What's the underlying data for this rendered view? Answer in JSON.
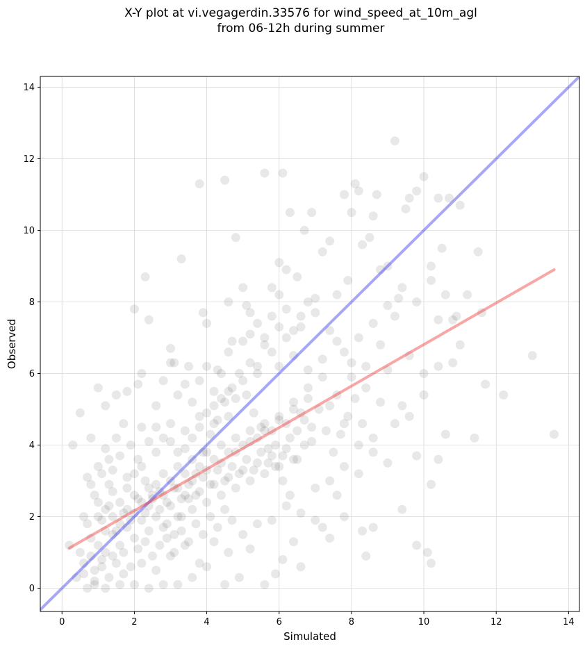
{
  "chart_data": {
    "type": "scatter",
    "title": "X-Y plot at vi.vegagerdin.33576 for wind_speed_at_10m_agl",
    "subtitle": "from 06-12h during summer",
    "xlabel": "Simulated",
    "ylabel": "Observed",
    "xlim": [
      -0.6,
      14.3
    ],
    "ylim": [
      -0.65,
      14.3
    ],
    "xticks": [
      "0",
      "2",
      "4",
      "6",
      "8",
      "10",
      "12",
      "14"
    ],
    "yticks": [
      "0",
      "2",
      "4",
      "6",
      "8",
      "10",
      "12",
      "14"
    ],
    "grid": true,
    "point_color": "#404040",
    "point_opacity": 0.12,
    "points": [
      [
        0.2,
        1.2
      ],
      [
        0.3,
        4.0
      ],
      [
        0.5,
        4.9
      ],
      [
        0.6,
        0.7
      ],
      [
        0.4,
        0.3
      ],
      [
        0.7,
        3.1
      ],
      [
        0.8,
        4.2
      ],
      [
        0.9,
        0.1
      ],
      [
        1.0,
        5.6
      ],
      [
        1.2,
        5.1
      ],
      [
        1.3,
        2.9
      ],
      [
        1.5,
        5.4
      ],
      [
        1.8,
        5.5
      ],
      [
        2.0,
        7.8
      ],
      [
        2.1,
        5.7
      ],
      [
        2.2,
        6.0
      ],
      [
        2.3,
        8.7
      ],
      [
        2.4,
        7.5
      ],
      [
        2.6,
        5.1
      ],
      [
        2.8,
        5.8
      ],
      [
        3.0,
        6.7
      ],
      [
        3.1,
        6.3
      ],
      [
        3.3,
        9.2
      ],
      [
        3.5,
        6.2
      ],
      [
        3.8,
        11.3
      ],
      [
        3.9,
        7.7
      ],
      [
        4.0,
        7.4
      ],
      [
        4.3,
        6.1
      ],
      [
        4.5,
        11.4
      ],
      [
        4.6,
        8.0
      ],
      [
        4.7,
        6.9
      ],
      [
        4.8,
        9.8
      ],
      [
        5.0,
        8.4
      ],
      [
        5.1,
        7.9
      ],
      [
        5.2,
        7.7
      ],
      [
        5.4,
        6.0
      ],
      [
        5.6,
        11.6
      ],
      [
        5.8,
        8.4
      ],
      [
        6.0,
        8.2
      ],
      [
        6.0,
        9.1
      ],
      [
        6.1,
        11.6
      ],
      [
        6.2,
        8.9
      ],
      [
        6.3,
        10.5
      ],
      [
        6.5,
        8.7
      ],
      [
        6.7,
        10.0
      ],
      [
        6.9,
        10.5
      ],
      [
        7.0,
        8.1
      ],
      [
        7.2,
        9.4
      ],
      [
        7.4,
        9.7
      ],
      [
        7.6,
        8.2
      ],
      [
        7.8,
        11.0
      ],
      [
        7.9,
        8.6
      ],
      [
        8.0,
        10.5
      ],
      [
        8.1,
        11.3
      ],
      [
        8.2,
        11.1
      ],
      [
        8.3,
        9.6
      ],
      [
        8.5,
        9.8
      ],
      [
        8.6,
        10.4
      ],
      [
        8.7,
        11.0
      ],
      [
        8.8,
        8.9
      ],
      [
        9.0,
        9.0
      ],
      [
        9.2,
        12.5
      ],
      [
        9.3,
        8.1
      ],
      [
        9.5,
        10.6
      ],
      [
        9.6,
        10.9
      ],
      [
        9.8,
        11.1
      ],
      [
        10.0,
        11.5
      ],
      [
        10.2,
        9.0
      ],
      [
        10.4,
        10.9
      ],
      [
        10.5,
        9.5
      ],
      [
        10.7,
        10.9
      ],
      [
        10.9,
        7.6
      ],
      [
        11.0,
        10.7
      ],
      [
        11.2,
        8.2
      ],
      [
        11.5,
        9.4
      ],
      [
        11.6,
        7.7
      ],
      [
        11.7,
        5.7
      ],
      [
        12.2,
        5.4
      ],
      [
        13.0,
        6.5
      ],
      [
        13.6,
        4.3
      ],
      [
        11.4,
        4.2
      ],
      [
        10.6,
        4.3
      ],
      [
        10.4,
        3.6
      ],
      [
        10.2,
        2.9
      ],
      [
        9.8,
        1.2
      ],
      [
        10.1,
        1.0
      ],
      [
        10.2,
        0.7
      ],
      [
        9.4,
        2.2
      ],
      [
        8.6,
        1.7
      ],
      [
        8.4,
        0.9
      ],
      [
        8.3,
        1.6
      ],
      [
        7.8,
        2.0
      ],
      [
        7.6,
        2.6
      ],
      [
        7.4,
        1.4
      ],
      [
        7.2,
        1.7
      ],
      [
        7.0,
        1.9
      ],
      [
        6.6,
        0.6
      ],
      [
        6.4,
        1.3
      ],
      [
        6.1,
        0.8
      ],
      [
        5.9,
        0.4
      ],
      [
        5.6,
        0.1
      ],
      [
        5.2,
        1.1
      ],
      [
        4.9,
        0.3
      ],
      [
        4.5,
        0.1
      ],
      [
        4.0,
        0.6
      ],
      [
        3.6,
        0.3
      ],
      [
        3.2,
        0.1
      ],
      [
        2.8,
        0.1
      ],
      [
        2.4,
        0.0
      ],
      [
        2.0,
        0.1
      ],
      [
        1.6,
        0.1
      ],
      [
        1.2,
        0.0
      ],
      [
        0.9,
        0.2
      ],
      [
        0.7,
        0.0
      ],
      [
        1.1,
        0.6
      ],
      [
        1.4,
        0.9
      ],
      [
        1.7,
        0.4
      ],
      [
        2.2,
        0.7
      ],
      [
        2.6,
        0.5
      ],
      [
        3.0,
        0.9
      ],
      [
        3.4,
        1.2
      ],
      [
        3.8,
        0.7
      ],
      [
        4.2,
        1.3
      ],
      [
        4.6,
        1.0
      ],
      [
        5.0,
        1.5
      ],
      [
        5.4,
        1.8
      ],
      [
        5.8,
        1.9
      ],
      [
        6.2,
        2.3
      ],
      [
        6.6,
        2.1
      ],
      [
        7.0,
        2.8
      ],
      [
        7.4,
        3.0
      ],
      [
        7.8,
        3.4
      ],
      [
        8.2,
        3.2
      ],
      [
        8.6,
        3.8
      ],
      [
        9.0,
        3.5
      ],
      [
        9.4,
        5.1
      ],
      [
        9.8,
        3.7
      ],
      [
        10.0,
        6.0
      ],
      [
        10.4,
        7.5
      ],
      [
        10.8,
        6.3
      ],
      [
        9.6,
        6.5
      ],
      [
        9.2,
        7.6
      ],
      [
        8.8,
        6.8
      ],
      [
        8.4,
        6.2
      ],
      [
        8.0,
        5.9
      ],
      [
        7.6,
        5.4
      ],
      [
        7.2,
        5.9
      ],
      [
        6.8,
        5.6
      ],
      [
        6.4,
        5.0
      ],
      [
        6.0,
        4.7
      ],
      [
        5.6,
        4.4
      ],
      [
        5.2,
        4.1
      ],
      [
        4.8,
        3.8
      ],
      [
        4.4,
        3.5
      ],
      [
        4.0,
        3.3
      ],
      [
        3.6,
        3.0
      ],
      [
        3.2,
        2.8
      ],
      [
        2.8,
        2.6
      ],
      [
        2.4,
        2.3
      ],
      [
        2.0,
        2.1
      ],
      [
        1.6,
        1.8
      ],
      [
        1.2,
        1.6
      ],
      [
        0.8,
        1.4
      ],
      [
        0.6,
        2.0
      ],
      [
        1.0,
        2.4
      ],
      [
        1.4,
        2.7
      ],
      [
        1.8,
        3.1
      ],
      [
        2.2,
        3.4
      ],
      [
        2.6,
        3.8
      ],
      [
        3.0,
        4.1
      ],
      [
        3.4,
        4.4
      ],
      [
        3.8,
        4.8
      ],
      [
        4.2,
        5.1
      ],
      [
        4.6,
        5.5
      ],
      [
        5.0,
        5.8
      ],
      [
        5.4,
        6.2
      ],
      [
        5.8,
        6.6
      ],
      [
        6.2,
        7.0
      ],
      [
        6.6,
        7.3
      ],
      [
        7.0,
        7.7
      ],
      [
        7.4,
        7.2
      ],
      [
        7.8,
        6.6
      ],
      [
        8.2,
        7.0
      ],
      [
        8.6,
        7.4
      ],
      [
        9.0,
        7.9
      ],
      [
        9.4,
        8.4
      ],
      [
        9.8,
        8.0
      ],
      [
        10.2,
        8.6
      ],
      [
        10.6,
        8.2
      ],
      [
        11.0,
        6.8
      ],
      [
        0.5,
        1.0
      ],
      [
        0.7,
        1.8
      ],
      [
        0.9,
        2.6
      ],
      [
        1.1,
        3.2
      ],
      [
        1.3,
        3.6
      ],
      [
        1.5,
        4.2
      ],
      [
        1.7,
        4.6
      ],
      [
        1.9,
        4.0
      ],
      [
        2.1,
        3.6
      ],
      [
        2.3,
        3.0
      ],
      [
        2.5,
        2.6
      ],
      [
        2.7,
        2.2
      ],
      [
        2.9,
        1.8
      ],
      [
        3.1,
        1.5
      ],
      [
        3.3,
        2.0
      ],
      [
        3.5,
        2.5
      ],
      [
        3.7,
        3.2
      ],
      [
        3.9,
        3.8
      ],
      [
        4.1,
        4.3
      ],
      [
        4.3,
        4.7
      ],
      [
        4.5,
        5.2
      ],
      [
        4.7,
        5.6
      ],
      [
        4.9,
        6.0
      ],
      [
        5.1,
        5.4
      ],
      [
        5.3,
        4.9
      ],
      [
        5.5,
        4.5
      ],
      [
        5.7,
        3.9
      ],
      [
        5.9,
        3.4
      ],
      [
        6.1,
        3.0
      ],
      [
        6.3,
        2.6
      ],
      [
        6.5,
        3.6
      ],
      [
        6.7,
        4.0
      ],
      [
        6.9,
        4.5
      ],
      [
        7.1,
        5.0
      ],
      [
        7.3,
        4.4
      ],
      [
        7.5,
        3.8
      ],
      [
        7.7,
        4.3
      ],
      [
        7.9,
        4.8
      ],
      [
        8.1,
        5.3
      ],
      [
        8.3,
        4.6
      ],
      [
        0.6,
        0.4
      ],
      [
        0.8,
        0.9
      ],
      [
        1.0,
        1.2
      ],
      [
        1.2,
        1.0
      ],
      [
        1.4,
        1.5
      ],
      [
        1.6,
        1.2
      ],
      [
        1.8,
        1.7
      ],
      [
        2.0,
        1.4
      ],
      [
        2.2,
        1.9
      ],
      [
        2.4,
        1.6
      ],
      [
        2.6,
        2.0
      ],
      [
        2.8,
        1.7
      ],
      [
        3.0,
        2.3
      ],
      [
        3.2,
        2.0
      ],
      [
        3.4,
        2.6
      ],
      [
        3.6,
        2.2
      ],
      [
        3.8,
        2.7
      ],
      [
        4.0,
        2.4
      ],
      [
        4.2,
        2.9
      ],
      [
        4.4,
        2.6
      ],
      [
        4.6,
        3.1
      ],
      [
        4.8,
        2.8
      ],
      [
        5.0,
        3.3
      ],
      [
        5.2,
        3.0
      ],
      [
        5.4,
        3.5
      ],
      [
        5.6,
        3.2
      ],
      [
        5.8,
        3.7
      ],
      [
        6.0,
        3.4
      ],
      [
        6.2,
        3.9
      ],
      [
        6.4,
        3.6
      ],
      [
        0.9,
        0.5
      ],
      [
        1.1,
        0.8
      ],
      [
        1.3,
        0.3
      ],
      [
        1.5,
        0.7
      ],
      [
        1.7,
        1.0
      ],
      [
        1.9,
        0.6
      ],
      [
        2.1,
        1.1
      ],
      [
        2.3,
        1.3
      ],
      [
        2.5,
        0.9
      ],
      [
        2.7,
        1.2
      ],
      [
        2.9,
        1.4
      ],
      [
        3.1,
        1.0
      ],
      [
        3.3,
        1.6
      ],
      [
        3.5,
        1.3
      ],
      [
        3.7,
        1.8
      ],
      [
        3.9,
        1.5
      ],
      [
        4.1,
        2.0
      ],
      [
        4.3,
        1.7
      ],
      [
        4.5,
        2.2
      ],
      [
        4.7,
        1.9
      ],
      [
        1.0,
        2.0
      ],
      [
        1.2,
        2.2
      ],
      [
        1.4,
        2.0
      ],
      [
        1.6,
        2.4
      ],
      [
        1.8,
        2.2
      ],
      [
        2.0,
        2.6
      ],
      [
        2.2,
        2.4
      ],
      [
        2.4,
        2.8
      ],
      [
        2.6,
        2.9
      ],
      [
        2.8,
        3.2
      ],
      [
        3.0,
        3.0
      ],
      [
        3.2,
        3.4
      ],
      [
        3.4,
        3.2
      ],
      [
        3.6,
        3.6
      ],
      [
        3.8,
        3.4
      ],
      [
        4.0,
        3.8
      ],
      [
        4.2,
        3.6
      ],
      [
        4.4,
        4.0
      ],
      [
        4.6,
        3.8
      ],
      [
        4.8,
        4.2
      ],
      [
        5.0,
        4.0
      ],
      [
        5.2,
        4.4
      ],
      [
        5.4,
        4.2
      ],
      [
        5.6,
        4.6
      ],
      [
        5.8,
        4.4
      ],
      [
        6.0,
        4.8
      ],
      [
        6.2,
        4.6
      ],
      [
        6.4,
        5.2
      ],
      [
        6.6,
        4.9
      ],
      [
        6.8,
        5.3
      ],
      [
        0.8,
        2.9
      ],
      [
        1.0,
        3.4
      ],
      [
        1.2,
        3.9
      ],
      [
        1.4,
        3.3
      ],
      [
        1.6,
        3.7
      ],
      [
        1.8,
        2.8
      ],
      [
        2.0,
        3.2
      ],
      [
        2.2,
        4.5
      ],
      [
        2.4,
        4.1
      ],
      [
        2.6,
        4.5
      ],
      [
        2.8,
        4.2
      ],
      [
        3.0,
        4.6
      ],
      [
        3.2,
        3.8
      ],
      [
        3.4,
        3.9
      ],
      [
        3.6,
        4.2
      ],
      [
        3.8,
        4.5
      ],
      [
        4.0,
        4.9
      ],
      [
        4.2,
        4.6
      ],
      [
        4.4,
        5.3
      ],
      [
        4.6,
        4.8
      ],
      [
        1.1,
        1.9
      ],
      [
        1.3,
        2.3
      ],
      [
        1.5,
        1.6
      ],
      [
        1.7,
        2.1
      ],
      [
        1.9,
        1.9
      ],
      [
        2.1,
        2.5
      ],
      [
        2.3,
        2.1
      ],
      [
        2.5,
        2.5
      ],
      [
        2.7,
        2.7
      ],
      [
        2.9,
        2.4
      ],
      [
        3.1,
        2.8
      ],
      [
        3.3,
        2.5
      ],
      [
        3.5,
        2.9
      ],
      [
        3.7,
        2.6
      ],
      [
        3.9,
        3.1
      ],
      [
        4.1,
        2.9
      ],
      [
        4.3,
        3.3
      ],
      [
        4.5,
        3.0
      ],
      [
        4.7,
        3.4
      ],
      [
        4.9,
        3.2
      ],
      [
        5.1,
        3.6
      ],
      [
        5.3,
        3.3
      ],
      [
        5.5,
        3.8
      ],
      [
        5.7,
        3.5
      ],
      [
        5.9,
        4.0
      ],
      [
        6.1,
        3.7
      ],
      [
        6.3,
        4.2
      ],
      [
        6.5,
        4.4
      ],
      [
        6.7,
        4.7
      ],
      [
        6.9,
        4.1
      ],
      [
        5.2,
        6.3
      ],
      [
        5.6,
        6.8
      ],
      [
        6.0,
        6.2
      ],
      [
        6.4,
        6.5
      ],
      [
        6.8,
        6.1
      ],
      [
        7.2,
        6.4
      ],
      [
        7.6,
        6.9
      ],
      [
        8.0,
        6.3
      ],
      [
        8.4,
        5.6
      ],
      [
        8.8,
        5.2
      ],
      [
        9.2,
        4.6
      ],
      [
        9.6,
        4.8
      ],
      [
        10.0,
        5.4
      ],
      [
        10.4,
        6.2
      ],
      [
        10.8,
        7.5
      ],
      [
        9.0,
        6.1
      ],
      [
        8.6,
        4.2
      ],
      [
        8.2,
        4.0
      ],
      [
        7.8,
        4.6
      ],
      [
        7.4,
        5.1
      ],
      [
        3.0,
        6.3
      ],
      [
        3.2,
        5.4
      ],
      [
        3.4,
        5.7
      ],
      [
        3.6,
        5.2
      ],
      [
        3.8,
        5.8
      ],
      [
        4.0,
        6.2
      ],
      [
        4.2,
        5.5
      ],
      [
        4.4,
        6.0
      ],
      [
        4.6,
        6.6
      ],
      [
        4.8,
        5.3
      ],
      [
        5.0,
        6.9
      ],
      [
        5.2,
        7.1
      ],
      [
        5.4,
        7.4
      ],
      [
        5.6,
        7.0
      ],
      [
        5.8,
        7.6
      ],
      [
        6.0,
        7.3
      ],
      [
        6.2,
        7.8
      ],
      [
        6.4,
        7.2
      ],
      [
        6.6,
        7.6
      ],
      [
        6.8,
        8.0
      ]
    ],
    "lines": [
      {
        "role": "one-to-one",
        "color": "#3c3cf0",
        "opacity": 0.45,
        "x": [
          -0.6,
          14.3
        ],
        "y": [
          -0.6,
          14.3
        ]
      },
      {
        "role": "regression",
        "color": "#f03c3c",
        "opacity": 0.45,
        "x": [
          0.2,
          13.6
        ],
        "y": [
          1.12,
          8.9
        ]
      }
    ]
  }
}
